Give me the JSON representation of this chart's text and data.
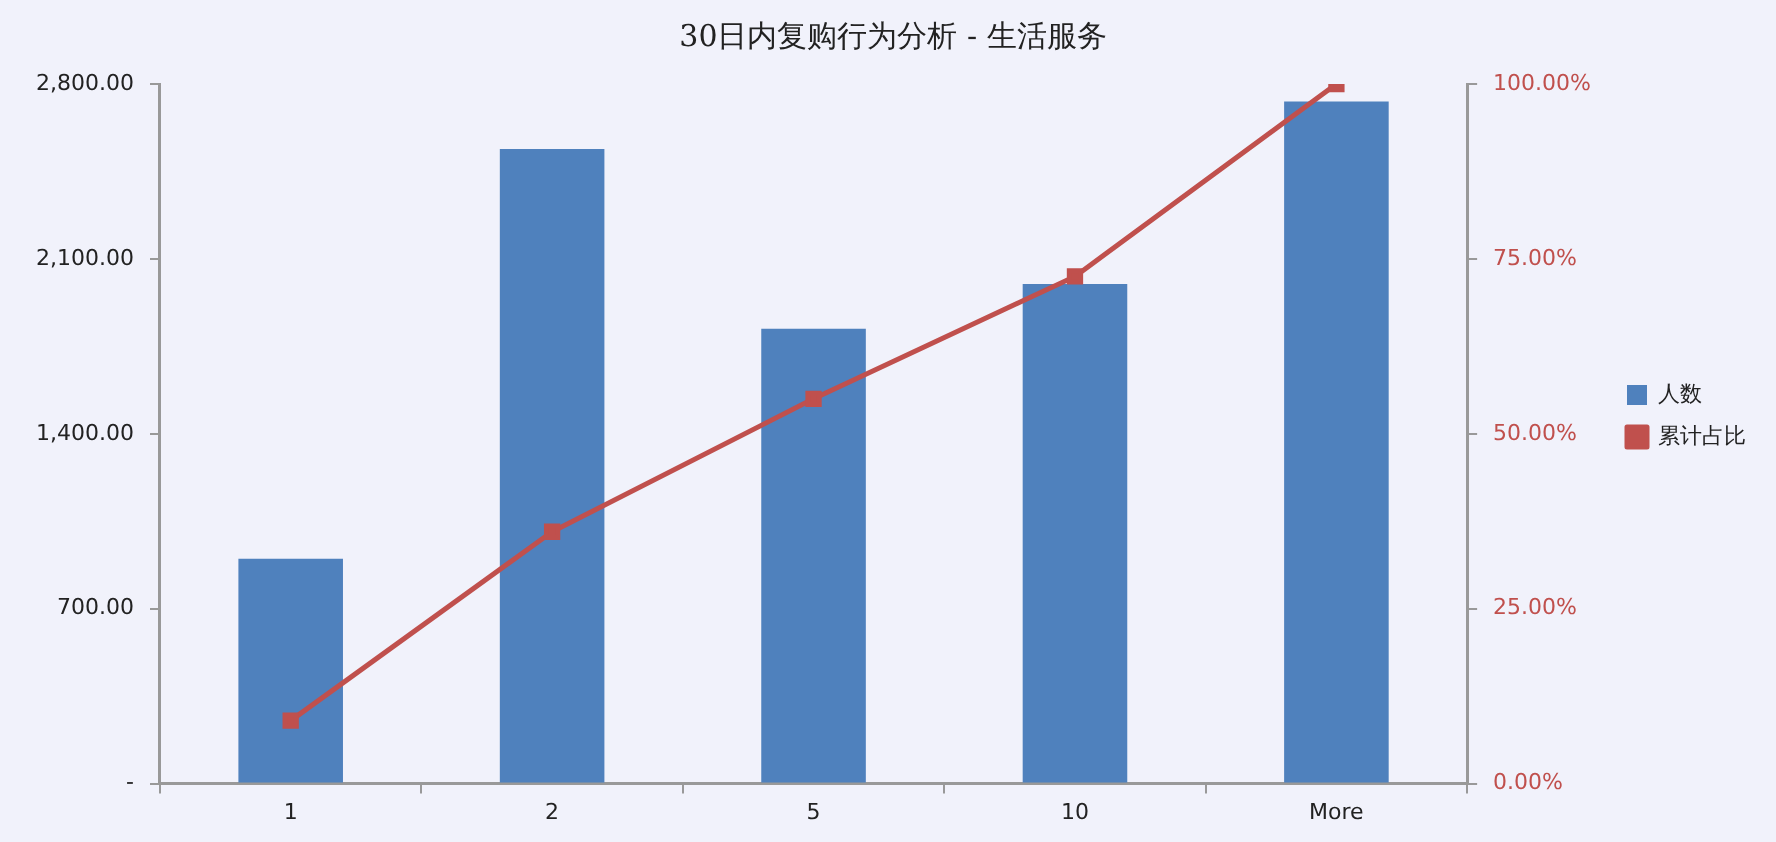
{
  "chart_data": {
    "type": "bar",
    "title": "30日内复购行为分析 - 生活服务",
    "categories": [
      "1",
      "2",
      "5",
      "10",
      "More"
    ],
    "series": [
      {
        "name": "人数",
        "color": "#4f81bd",
        "values": [
          900,
          2540,
          1820,
          2000,
          2730
        ]
      },
      {
        "name": "累计占比",
        "type": "line",
        "axis": "y2",
        "color": "#c0504d",
        "values": [
          9,
          36,
          55,
          72.5,
          100
        ]
      }
    ],
    "ylim": [
      0,
      2800
    ],
    "yticks": [
      {
        "value": 0,
        "label": "-"
      },
      {
        "value": 700,
        "label": "700.00"
      },
      {
        "value": 1400,
        "label": "1,400.00"
      },
      {
        "value": 2100,
        "label": "2,100.00"
      },
      {
        "value": 2800,
        "label": "2,800.00"
      }
    ],
    "y2lim": [
      0,
      100
    ],
    "y2ticks": [
      {
        "value": 0,
        "label": "0.00%"
      },
      {
        "value": 25,
        "label": "25.00%"
      },
      {
        "value": 50,
        "label": "50.00%"
      },
      {
        "value": 75,
        "label": "75.00%"
      },
      {
        "value": 100,
        "label": "100.00%"
      }
    ],
    "grid": false,
    "legend": "right",
    "marker": "square",
    "line_style": "solid"
  }
}
